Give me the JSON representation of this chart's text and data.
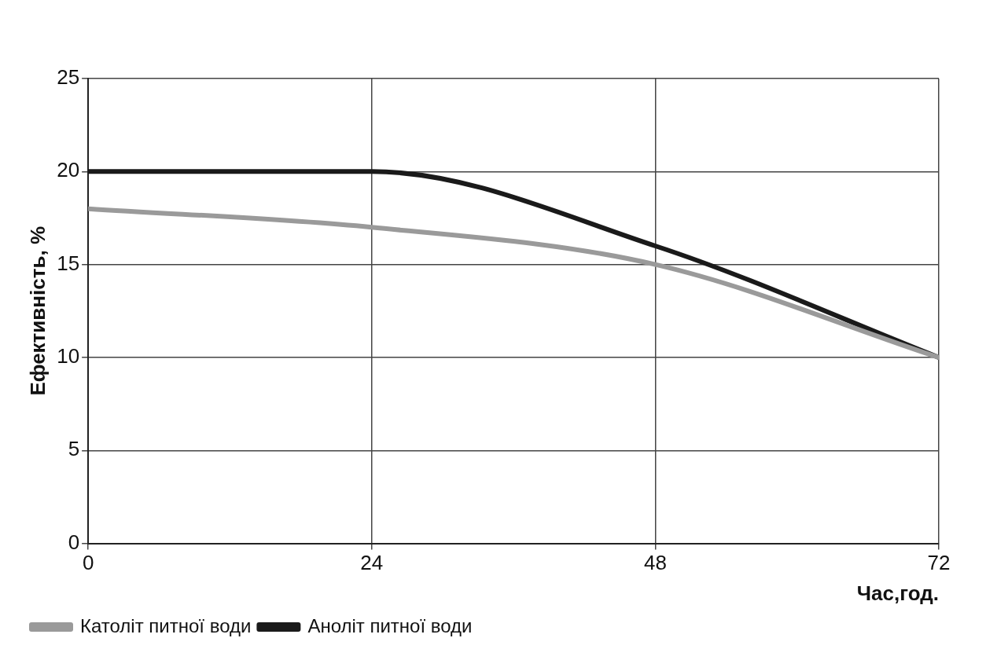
{
  "chart_data": {
    "type": "line",
    "xlabel": "Час,год.",
    "ylabel": "Ефективність, %",
    "x": [
      0,
      24,
      48,
      72
    ],
    "xlim": [
      0,
      72
    ],
    "xticks": [
      0,
      24,
      48,
      72
    ],
    "ylim": [
      0,
      25
    ],
    "yticks": [
      0,
      5,
      10,
      15,
      20,
      25
    ],
    "grid": true,
    "legend": "bottom left",
    "marker": "none",
    "line_style": "solid",
    "series": [
      {
        "name": "Католіт питної води",
        "color": "#9a9a9a",
        "values": [
          18,
          17,
          15,
          10
        ]
      },
      {
        "name": "Аноліт питної води",
        "color": "#1a1a1a",
        "values": [
          20,
          20,
          16,
          10
        ]
      }
    ]
  }
}
